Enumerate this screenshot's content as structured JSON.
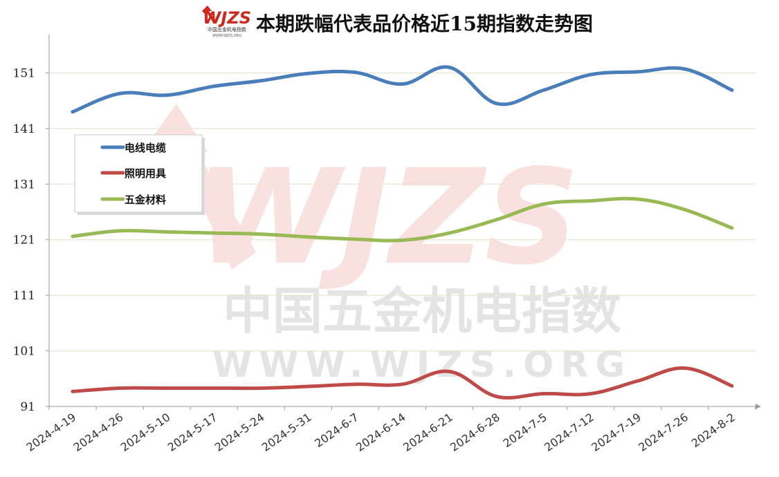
{
  "logo": {
    "text": "WJZS",
    "subtext": "中国五金机电指数",
    "url_text": "WWW.WJZS.ORG"
  },
  "watermark": {
    "logo_text": "WJZS",
    "cn_text": "中国五金机电指数",
    "url_text": "WWW.WJZS.ORG"
  },
  "colors": {
    "series_1": "#4a7ebb",
    "series_2": "#be4b48",
    "series_3": "#98b954",
    "grid": "#e8e4cf",
    "axis": "#999999",
    "watermark_red": "#f3c9c4",
    "watermark_gray": "#d2d2d2"
  },
  "chart_data": {
    "type": "line",
    "title": "本期跌幅代表品价格近15期指数走势图",
    "xlabel": "",
    "ylabel": "",
    "categories": [
      "2024-4-19",
      "2024-4-26",
      "2024-5-10",
      "2024-5-17",
      "2024-5-24",
      "2024-5-31",
      "2024-6-7",
      "2024-6-14",
      "2024-6-21",
      "2024-6-28",
      "2024-7-5",
      "2024-7-12",
      "2024-7-19",
      "2024-7-26",
      "2024-8-2"
    ],
    "y_ticks": [
      91,
      101,
      111,
      121,
      131,
      141,
      151
    ],
    "ylim": [
      91,
      157.9
    ],
    "grid": "horizontal",
    "legend_position": "left, inside plot",
    "series": [
      {
        "name": "电线电缆",
        "values": [
          144.0,
          147.3,
          147.0,
          148.6,
          149.6,
          150.9,
          151.1,
          149.0,
          152.0,
          145.5,
          147.9,
          150.7,
          151.2,
          151.7,
          147.9
        ]
      },
      {
        "name": "照明用具",
        "values": [
          93.7,
          94.3,
          94.3,
          94.3,
          94.3,
          94.6,
          95.0,
          95.0,
          97.3,
          92.8,
          93.3,
          93.3,
          95.6,
          97.9,
          94.7
        ]
      },
      {
        "name": "五金材料",
        "values": [
          121.6,
          122.6,
          122.4,
          122.2,
          122.0,
          121.5,
          121.1,
          120.9,
          122.2,
          124.6,
          127.4,
          128.0,
          128.3,
          126.4,
          123.1
        ]
      }
    ]
  }
}
